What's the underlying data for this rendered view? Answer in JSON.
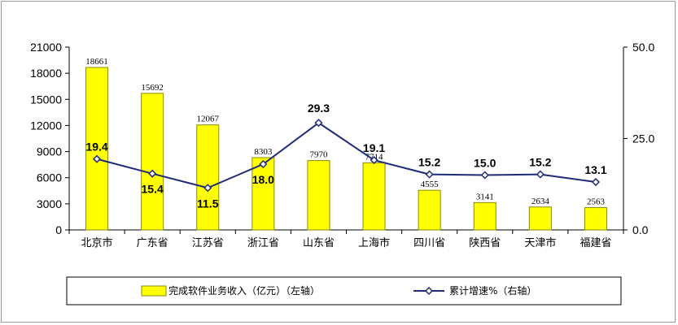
{
  "chart_data": {
    "type": "bar",
    "categories": [
      "北京市",
      "广东省",
      "江苏省",
      "浙江省",
      "山东省",
      "上海市",
      "四川省",
      "陕西省",
      "天津市",
      "福建省"
    ],
    "series": [
      {
        "name": "完成软件业务收入（亿元）（左轴）",
        "type": "bar",
        "axis": "left",
        "values": [
          18661,
          15692,
          12067,
          8303,
          7970,
          7714,
          4555,
          3141,
          2634,
          2563
        ],
        "labels": [
          "18661",
          "15692",
          "12067",
          "8303",
          "7970",
          "7714",
          "4555",
          "3141",
          "2634",
          "2563"
        ]
      },
      {
        "name": "累计增速%（右轴）",
        "type": "line",
        "axis": "right",
        "values": [
          19.4,
          15.4,
          11.5,
          18.0,
          29.3,
          19.1,
          15.2,
          15.0,
          15.2,
          13.1
        ],
        "labels": [
          "19.4",
          "15.4",
          "11.5",
          "18.0",
          "29.3",
          "19.1",
          "15.2",
          "15.0",
          "15.2",
          "13.1"
        ]
      }
    ],
    "y_left": {
      "ylim": [
        0,
        21000
      ],
      "ticks": [
        "0",
        "3000",
        "6000",
        "9000",
        "12000",
        "15000",
        "18000",
        "21000"
      ]
    },
    "y_right": {
      "ylim": [
        0,
        50
      ],
      "ticks": [
        "0.0",
        "25.0",
        "50.0"
      ]
    },
    "grid": false,
    "legend": "bottom",
    "colors": {
      "bar_fill": "#ffff00",
      "bar_stroke": "#8a8a00",
      "line": "#1f2a78",
      "axis": "#000000"
    }
  }
}
